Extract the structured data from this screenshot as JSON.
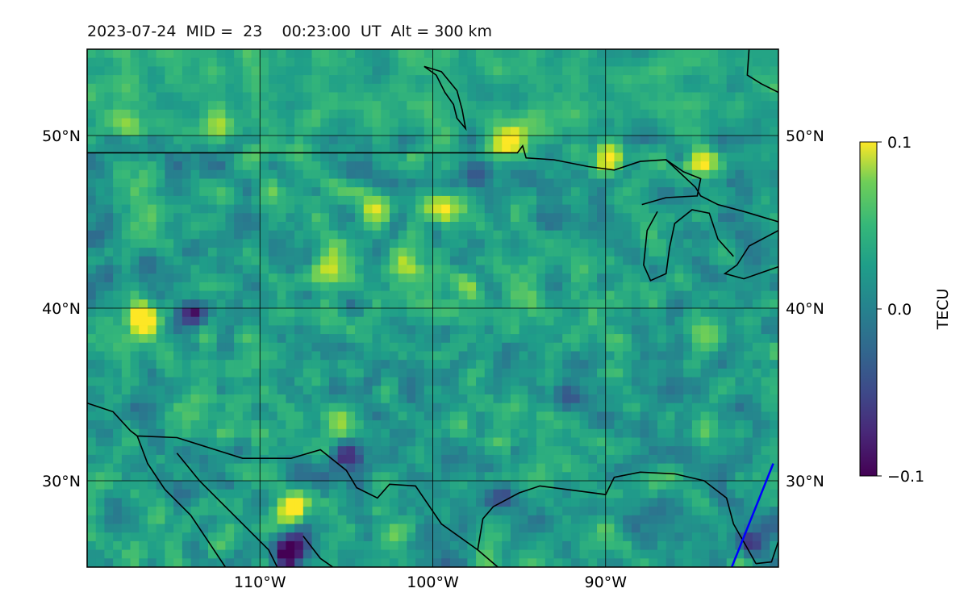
{
  "title": "2023-07-24  MID =  23    00:23:00  UT  Alt = 300 km",
  "map": {
    "lon_range": [
      -120,
      -80
    ],
    "lat_range": [
      25,
      55
    ],
    "lat_ticks": [
      {
        "value": 50,
        "label": "50°N"
      },
      {
        "value": 40,
        "label": "40°N"
      },
      {
        "value": 30,
        "label": "30°N"
      }
    ],
    "lon_ticks": [
      {
        "value": -110,
        "label": "110°W"
      },
      {
        "value": -100,
        "label": "100°W"
      },
      {
        "value": -90,
        "label": "90°W"
      }
    ],
    "gridlines": true,
    "coastline_color": "#000000",
    "track_color": "#0000ff",
    "colormap": "viridis"
  },
  "colorbar": {
    "label": "TECU",
    "min": -0.1,
    "max": 0.1,
    "ticks": [
      {
        "value": 0.1,
        "label": "0.1"
      },
      {
        "value": 0.0,
        "label": "0.0"
      },
      {
        "value": -0.1,
        "label": "−0.1"
      }
    ]
  },
  "features": {
    "hotspots": [
      {
        "lon": -116.7,
        "lat": 39.4,
        "v": 0.12
      },
      {
        "lon": -108.1,
        "lat": 28.4,
        "v": 0.14
      },
      {
        "lon": -105.5,
        "lat": 33.0,
        "v": 0.08
      },
      {
        "lon": -103.4,
        "lat": 45.6,
        "v": 0.1
      },
      {
        "lon": -99.4,
        "lat": 45.7,
        "v": 0.1
      },
      {
        "lon": -95.4,
        "lat": 49.6,
        "v": 0.1
      },
      {
        "lon": -89.7,
        "lat": 48.6,
        "v": 0.1
      },
      {
        "lon": -84.5,
        "lat": 48.3,
        "v": 0.09
      },
      {
        "lon": -106.1,
        "lat": 42.3,
        "v": 0.07
      },
      {
        "lon": -101.7,
        "lat": 42.4,
        "v": 0.07
      },
      {
        "lon": -98.1,
        "lat": 41.0,
        "v": 0.06
      },
      {
        "lon": -112.5,
        "lat": 50.5,
        "v": 0.05
      },
      {
        "lon": -117.8,
        "lat": 50.6,
        "v": 0.05
      }
    ],
    "coldspots": [
      {
        "lon": -108.2,
        "lat": 26.0,
        "v": -0.14
      },
      {
        "lon": -114.0,
        "lat": 39.7,
        "v": -0.08
      },
      {
        "lon": -105.0,
        "lat": 31.5,
        "v": -0.09
      },
      {
        "lon": -119.7,
        "lat": 44.0,
        "v": -0.07
      },
      {
        "lon": -97.2,
        "lat": 47.8,
        "v": -0.07
      },
      {
        "lon": -81.5,
        "lat": 26.5,
        "v": -0.08
      },
      {
        "lon": -92.0,
        "lat": 35.0,
        "v": -0.05
      },
      {
        "lon": -96.0,
        "lat": 29.0,
        "v": -0.06
      }
    ]
  },
  "coastlines": [
    [
      [
        -120,
        49.0
      ],
      [
        -95.1,
        49.0
      ],
      [
        -94.8,
        49.4
      ],
      [
        -94.6,
        48.7
      ],
      [
        -93.0,
        48.6
      ],
      [
        -91.0,
        48.2
      ],
      [
        -89.5,
        48.0
      ],
      [
        -88.0,
        48.5
      ],
      [
        -86.5,
        48.6
      ],
      [
        -84.8,
        47.0
      ],
      [
        -84.5,
        46.5
      ],
      [
        -83.5,
        46.0
      ],
      [
        -82.0,
        45.6
      ],
      [
        -80.0,
        45.0
      ]
    ],
    [
      [
        -120,
        34.5
      ],
      [
        -118.5,
        34.0
      ],
      [
        -117.5,
        32.9
      ],
      [
        -117.1,
        32.6
      ],
      [
        -114.8,
        32.5
      ],
      [
        -111.0,
        31.3
      ],
      [
        -108.2,
        31.3
      ],
      [
        -106.5,
        31.8
      ],
      [
        -105.0,
        30.6
      ],
      [
        -104.4,
        29.6
      ],
      [
        -103.2,
        29.0
      ],
      [
        -102.5,
        29.8
      ],
      [
        -101.0,
        29.7
      ],
      [
        -99.5,
        27.5
      ],
      [
        -97.4,
        26.0
      ],
      [
        -97.1,
        27.8
      ],
      [
        -96.5,
        28.5
      ],
      [
        -95.0,
        29.3
      ],
      [
        -93.8,
        29.7
      ],
      [
        -91.5,
        29.4
      ],
      [
        -90.0,
        29.2
      ],
      [
        -89.5,
        30.2
      ],
      [
        -88.0,
        30.5
      ],
      [
        -86.0,
        30.4
      ],
      [
        -84.3,
        30.0
      ],
      [
        -83.0,
        29.0
      ],
      [
        -82.6,
        27.5
      ],
      [
        -81.8,
        26.1
      ],
      [
        -81.3,
        25.2
      ]
    ],
    [
      [
        -117.1,
        32.6
      ],
      [
        -116.5,
        31.0
      ],
      [
        -115.5,
        29.5
      ],
      [
        -114.0,
        28.0
      ],
      [
        -113.0,
        26.5
      ],
      [
        -112.0,
        25.0
      ]
    ],
    [
      [
        -114.8,
        31.6
      ],
      [
        -113.5,
        30.0
      ],
      [
        -112.5,
        29.0
      ],
      [
        -111.5,
        28.0
      ],
      [
        -110.5,
        27.0
      ],
      [
        -109.5,
        26.0
      ],
      [
        -109.0,
        25.0
      ]
    ],
    [
      [
        -105.5,
        24.8
      ],
      [
        -106.5,
        25.5
      ],
      [
        -107.5,
        26.8
      ]
    ],
    [
      [
        -96.0,
        24.8
      ],
      [
        -97.4,
        26.0
      ]
    ],
    [
      [
        -81.3,
        25.2
      ],
      [
        -80.4,
        25.3
      ],
      [
        -80.0,
        26.5
      ],
      [
        -80.0,
        30.0
      ]
    ],
    [
      [
        -80.0,
        44.5
      ],
      [
        -81.7,
        43.6
      ],
      [
        -82.4,
        42.5
      ],
      [
        -83.1,
        42.0
      ],
      [
        -82.0,
        41.7
      ],
      [
        -80.0,
        42.4
      ]
    ],
    [
      [
        -87.0,
        45.6
      ],
      [
        -87.6,
        44.5
      ],
      [
        -87.8,
        42.5
      ],
      [
        -87.4,
        41.6
      ],
      [
        -86.5,
        42.0
      ],
      [
        -86.3,
        43.5
      ],
      [
        -86.0,
        44.9
      ],
      [
        -85.0,
        45.7
      ],
      [
        -84.0,
        45.5
      ],
      [
        -83.5,
        44.0
      ],
      [
        -82.6,
        43.0
      ]
    ],
    [
      [
        -87.9,
        46.0
      ],
      [
        -86.5,
        46.4
      ],
      [
        -84.7,
        46.5
      ],
      [
        -84.5,
        47.5
      ],
      [
        -85.5,
        47.9
      ],
      [
        -86.5,
        48.6
      ]
    ],
    [
      [
        -100.5,
        54.0
      ],
      [
        -99.8,
        53.5
      ],
      [
        -99.3,
        52.5
      ],
      [
        -98.8,
        51.8
      ],
      [
        -98.6,
        51.0
      ],
      [
        -98.1,
        50.4
      ],
      [
        -98.3,
        51.5
      ],
      [
        -98.6,
        52.6
      ],
      [
        -99.5,
        53.7
      ],
      [
        -100.5,
        54.0
      ]
    ],
    [
      [
        -81.7,
        55
      ],
      [
        -81.8,
        53.5
      ],
      [
        -81.0,
        53.0
      ],
      [
        -80.0,
        52.5
      ]
    ]
  ],
  "track": [
    [
      -82.7,
      25.0
    ],
    [
      -80.3,
      31.0
    ]
  ]
}
